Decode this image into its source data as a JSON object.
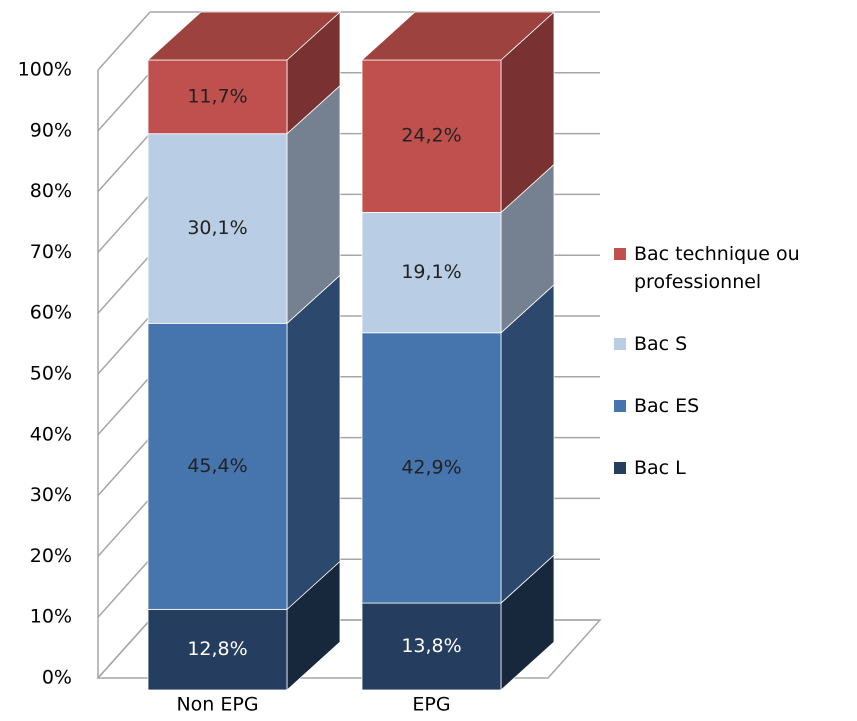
{
  "chart_data": {
    "type": "bar3d_stacked",
    "categories": [
      "Non EPG",
      "EPG"
    ],
    "series": [
      {
        "name": "Bac L",
        "color": "#253e5f",
        "values": [
          12.8,
          13.8
        ],
        "value_labels": [
          "12,8%",
          "13,8%"
        ]
      },
      {
        "name": "Bac ES",
        "color": "#4674ad",
        "values": [
          45.4,
          42.9
        ],
        "value_labels": [
          "45,4%",
          "42,9%"
        ]
      },
      {
        "name": "Bac S",
        "color": "#b9cde5",
        "values": [
          30.1,
          19.1
        ],
        "value_labels": [
          "30,1%",
          "19,1%"
        ]
      },
      {
        "name": "Bac technique ou professionnel",
        "color": "#c0504d",
        "values": [
          11.7,
          24.2
        ],
        "value_labels": [
          "11,7%",
          "24,2%"
        ]
      }
    ],
    "ylim": [
      0,
      100
    ],
    "yticks": [
      {
        "value": 0,
        "label": "0%"
      },
      {
        "value": 10,
        "label": "10%"
      },
      {
        "value": 20,
        "label": "20%"
      },
      {
        "value": 30,
        "label": "30%"
      },
      {
        "value": 40,
        "label": "40%"
      },
      {
        "value": 50,
        "label": "50%"
      },
      {
        "value": 60,
        "label": "60%"
      },
      {
        "value": 70,
        "label": "70%"
      },
      {
        "value": 80,
        "label": "80%"
      },
      {
        "value": 90,
        "label": "90%"
      },
      {
        "value": 100,
        "label": "100%"
      }
    ],
    "grid": true,
    "legend": "right"
  }
}
